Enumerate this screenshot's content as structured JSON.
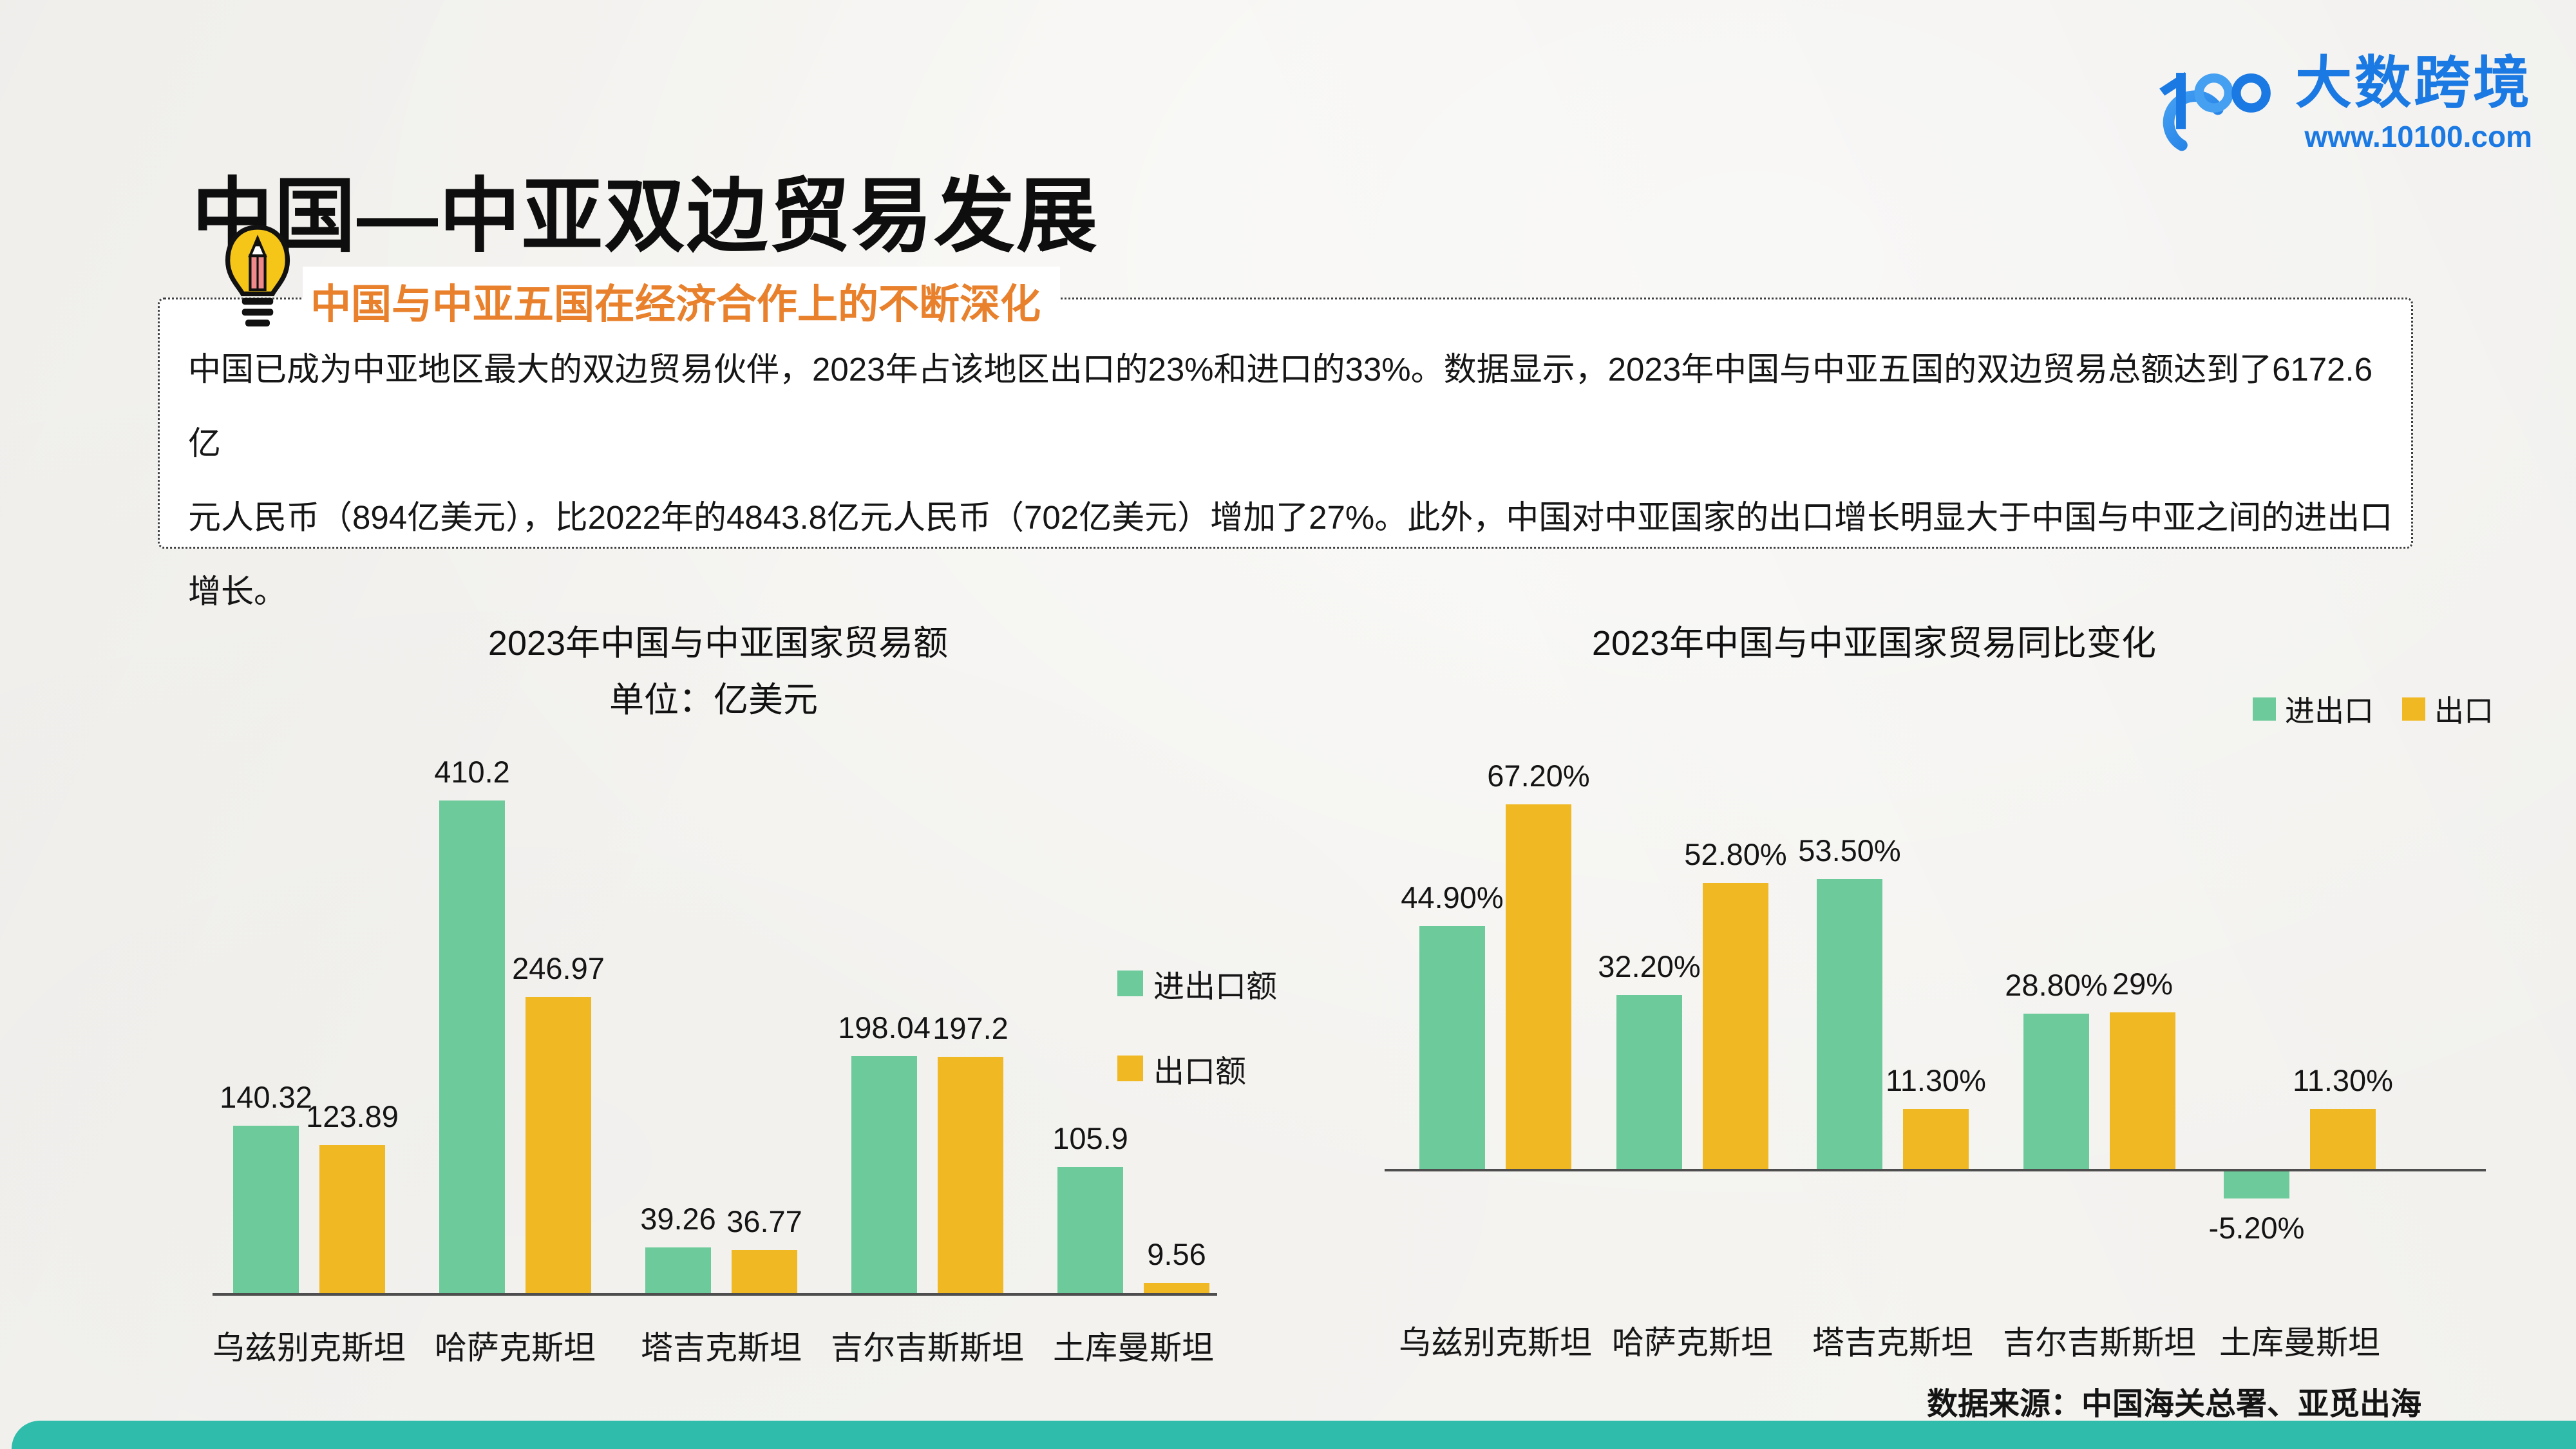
{
  "page": {
    "title": "中国—中亚双边贸易发展",
    "logo": {
      "brand_name": "大数跨境",
      "website": "www.10100.com"
    },
    "insight": {
      "heading": "中国与中亚五国在经济合作上的不断深化",
      "body_lines": [
        "中国已成为中亚地区最大的双边贸易伙伴，2023年占该地区出口的23%和进口的33%。数据显示，2023年中国与中亚五国的双边贸易总额达到了6172.6亿",
        "元人民币（894亿美元），比2022年的4843.8亿元人民币（702亿美元）增加了27%。此外，中国对中亚国家的出口增长明显大于中国与中亚之间的进出口",
        "增长。"
      ]
    },
    "source_note": "数据来源：中国海关总署、亚觅出海",
    "colors": {
      "green": "#6dca9b",
      "yellow": "#f0b822",
      "teal": "#2fbcab",
      "light_green": "#a6dab6",
      "orange": "#e8802c",
      "blue": "#1b79e3",
      "axis": "#4e4e4e"
    }
  },
  "chart_data": [
    {
      "type": "bar",
      "title": "2023年中国与中亚国家贸易额",
      "subtitle": "单位：亿美元",
      "categories": [
        "乌兹别克斯坦",
        "哈萨克斯坦",
        "塔吉克斯坦",
        "吉尔吉斯斯坦",
        "土库曼斯坦"
      ],
      "series": [
        {
          "name": "进出口额",
          "color_key": "green",
          "values": [
            140.32,
            410.2,
            39.26,
            198.04,
            105.9
          ],
          "labels": [
            "140.32",
            "410.2",
            "39.26",
            "198.04",
            "105.9"
          ]
        },
        {
          "name": "出口额",
          "color_key": "yellow",
          "values": [
            123.89,
            246.97,
            36.77,
            197.2,
            9.56
          ],
          "labels": [
            "123.89",
            "246.97",
            "36.77",
            "197.2",
            "9.56"
          ]
        }
      ],
      "ylabel": "亿美元",
      "ylim": [
        0,
        440
      ],
      "grid": false,
      "legend_position": "right-middle"
    },
    {
      "type": "bar",
      "title": "2023年中国与中亚国家贸易同比变化",
      "subtitle": "",
      "categories": [
        "乌兹别克斯坦",
        "哈萨克斯坦",
        "塔吉克斯坦",
        "吉尔吉斯斯坦",
        "土库曼斯坦"
      ],
      "series": [
        {
          "name": "进出口",
          "color_key": "green",
          "values": [
            44.9,
            32.2,
            53.5,
            28.8,
            -5.2
          ],
          "labels": [
            "44.90%",
            "32.20%",
            "53.50%",
            "28.80%",
            "-5.20%"
          ]
        },
        {
          "name": "出口",
          "color_key": "yellow",
          "values": [
            67.2,
            52.8,
            11.3,
            29,
            11.3
          ],
          "labels": [
            "67.20%",
            "52.80%",
            "11.30%",
            "29%",
            "11.30%"
          ]
        }
      ],
      "ylabel": "%",
      "ylim": [
        -10,
        75
      ],
      "grid": false,
      "legend_position": "top-right"
    }
  ]
}
